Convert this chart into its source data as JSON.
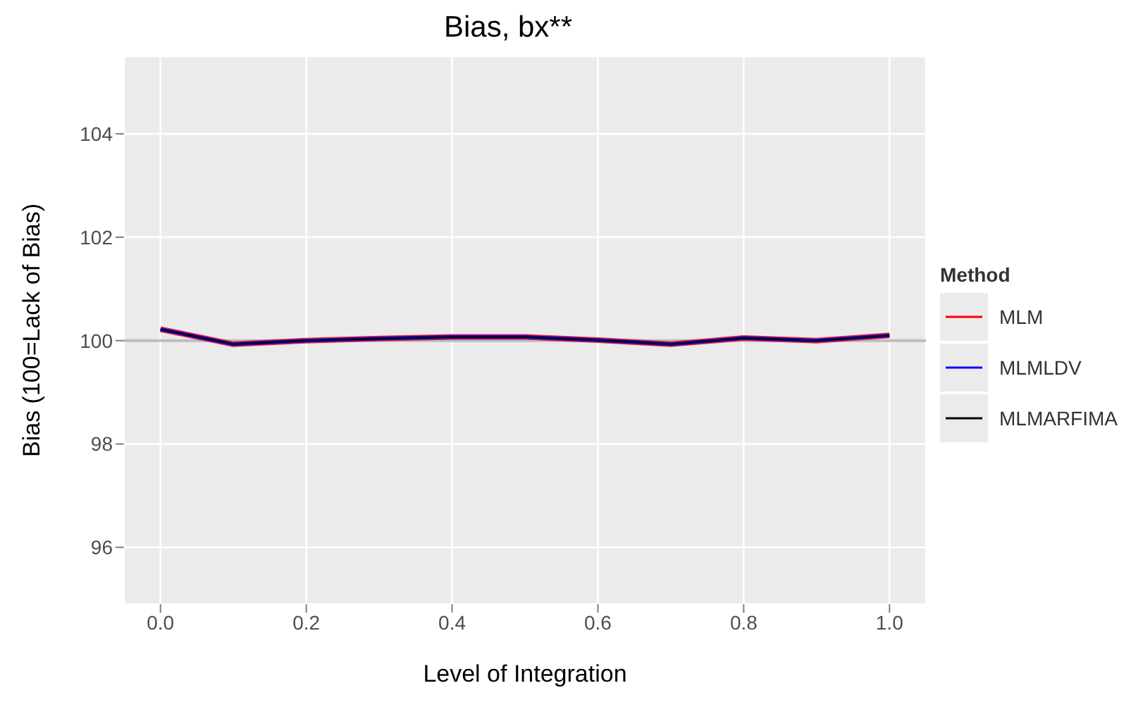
{
  "chart_data": {
    "type": "line",
    "title": "Bias, bx**",
    "xlabel": "Level of Integration",
    "ylabel": "Bias (100=Lack of Bias)",
    "legend_title": "Method",
    "x": [
      0,
      0.1,
      0.2,
      0.3,
      0.4,
      0.5,
      0.6,
      0.7,
      0.8,
      0.9,
      1.0
    ],
    "series": [
      {
        "name": "MLM",
        "color": "#ff0000",
        "values": [
          100.22,
          99.93,
          100.0,
          100.04,
          100.07,
          100.07,
          100.01,
          99.93,
          100.05,
          100.0,
          100.1
        ]
      },
      {
        "name": "MLMLDV",
        "color": "#0000ff",
        "values": [
          100.22,
          99.93,
          100.0,
          100.04,
          100.07,
          100.07,
          100.01,
          99.93,
          100.05,
          100.0,
          100.1
        ]
      },
      {
        "name": "MLMARFIMA",
        "color": "#000000",
        "values": [
          100.22,
          99.93,
          100.0,
          100.04,
          100.07,
          100.07,
          100.01,
          99.93,
          100.05,
          100.0,
          100.1
        ]
      }
    ],
    "xlim": [
      -0.05,
      1.05
    ],
    "xticks": [
      {
        "value": 0,
        "label": "0.0"
      },
      0.2,
      0.4,
      0.6,
      0.8,
      {
        "value": 1,
        "label": "1.0"
      }
    ],
    "ylim": [
      94.9,
      105.5
    ],
    "yticks": [
      96,
      98,
      100,
      102,
      104
    ],
    "ref_lines": [
      {
        "axis": "y",
        "value": 100,
        "color": "#bdbdbd"
      }
    ],
    "grid": true,
    "legend": "right",
    "marker": "none",
    "line_style": "solid"
  }
}
